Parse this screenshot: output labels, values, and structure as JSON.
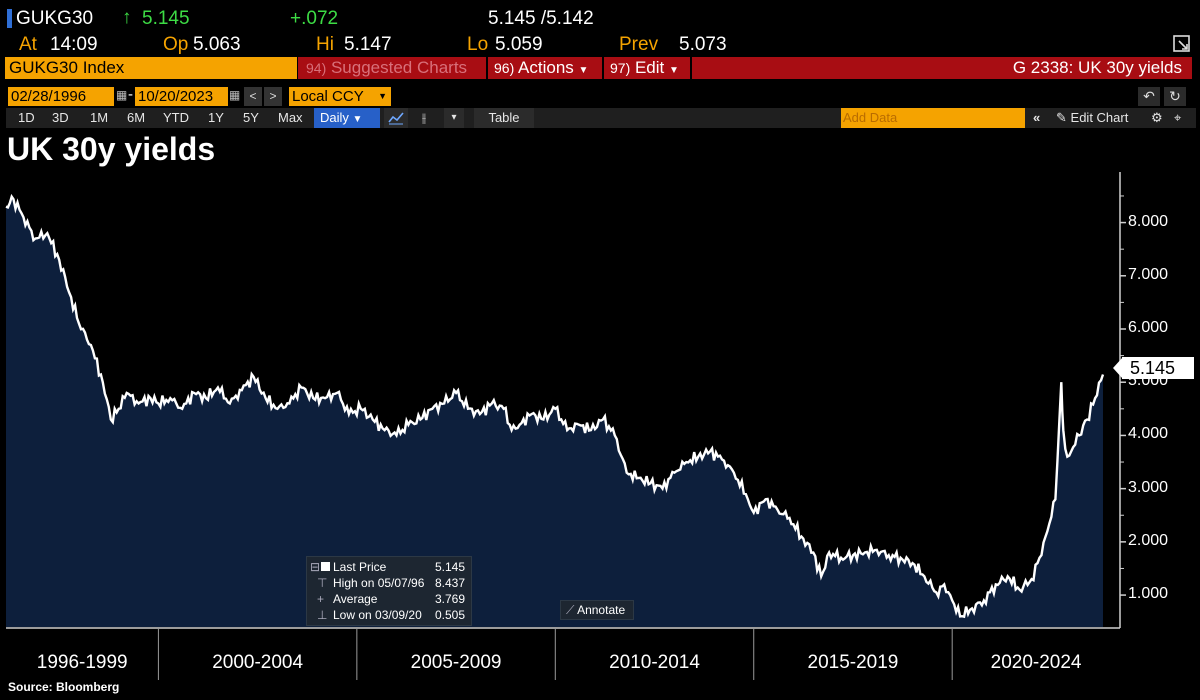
{
  "header": {
    "ticker": "GUKG30",
    "last": "5.145",
    "change": "+.072",
    "bid_ask": "5.145 /5.142",
    "at_label": "At",
    "at_value": "14:09",
    "op_label": "Op",
    "op_value": "5.063",
    "hi_label": "Hi",
    "hi_value": "5.147",
    "lo_label": "Lo",
    "lo_value": "5.059",
    "prev_label": "Prev",
    "prev_value": "5.073"
  },
  "command_bar": {
    "security": "GUKG30 Index",
    "suggested_num": "94)",
    "suggested": "Suggested Charts",
    "actions_num": "96)",
    "actions": "Actions",
    "edit_num": "97)",
    "edit": "Edit",
    "chart_id": "G 2338: UK 30y yields"
  },
  "controls": {
    "start_date": "02/28/1996",
    "end_date": "10/20/2023",
    "currency": "Local CCY",
    "periods": [
      "1D",
      "3D",
      "1M",
      "6M",
      "YTD",
      "1Y",
      "5Y",
      "Max"
    ],
    "frequency": "Daily",
    "table": "Table",
    "add_data_placeholder": "Add Data",
    "edit_chart": "Edit Chart"
  },
  "legend": {
    "last_price_label": "Last Price",
    "last_price_value": "5.145",
    "high_label": "High on 05/07/96",
    "high_value": "8.437",
    "average_label": "Average",
    "average_value": "3.769",
    "low_label": "Low on 03/09/20",
    "low_value": "0.505"
  },
  "annotate": "Annotate",
  "last_label": "5.145",
  "source": "Source: Bloomberg",
  "colors": {
    "line": "#ffffff",
    "fill": "#0d1f3c",
    "amber": "#f5a300",
    "red_bar": "#a80d13",
    "green": "#3ddc45"
  },
  "chart_data": {
    "type": "area",
    "title": "UK 30y yields",
    "xlabel": "",
    "ylabel": "",
    "ylim": [
      0.4,
      8.8
    ],
    "yticks": [
      "1.000",
      "2.000",
      "3.000",
      "4.000",
      "5.000",
      "6.000",
      "7.000",
      "8.000"
    ],
    "x_groups": [
      "1996-1999",
      "2000-2004",
      "2005-2009",
      "2010-2014",
      "2015-2019",
      "2020-2024"
    ],
    "x_range": [
      1996.16,
      2023.8
    ],
    "series": [
      {
        "name": "Last Price",
        "x": [
          1996.16,
          1996.35,
          1996.6,
          1996.9,
          1997.2,
          1997.5,
          1997.8,
          1998.0,
          1998.3,
          1998.6,
          1998.8,
          1999.0,
          1999.2,
          1999.5,
          1999.8,
          2000.0,
          2000.3,
          2000.6,
          2000.9,
          2001.2,
          2001.5,
          2001.8,
          2002.1,
          2002.4,
          2002.7,
          2003.0,
          2003.3,
          2003.6,
          2003.9,
          2004.2,
          2004.5,
          2004.8,
          2005.1,
          2005.4,
          2005.7,
          2006.0,
          2006.3,
          2006.6,
          2006.9,
          2007.2,
          2007.5,
          2007.8,
          2008.1,
          2008.4,
          2008.7,
          2008.9,
          2009.1,
          2009.4,
          2009.7,
          2010.0,
          2010.3,
          2010.6,
          2010.9,
          2011.2,
          2011.5,
          2011.8,
          2012.1,
          2012.4,
          2012.7,
          2013.0,
          2013.3,
          2013.6,
          2013.9,
          2014.2,
          2014.5,
          2014.8,
          2015.0,
          2015.3,
          2015.6,
          2015.9,
          2016.2,
          2016.5,
          2016.7,
          2016.9,
          2017.2,
          2017.5,
          2017.8,
          2018.1,
          2018.4,
          2018.7,
          2019.0,
          2019.3,
          2019.6,
          2019.8,
          2020.0,
          2020.2,
          2020.5,
          2020.8,
          2021.1,
          2021.4,
          2021.7,
          2022.0,
          2022.2,
          2022.4,
          2022.6,
          2022.75,
          2022.8,
          2022.9,
          2023.0,
          2023.2,
          2023.4,
          2023.6,
          2023.8
        ],
        "values": [
          8.3,
          8.44,
          8.1,
          7.7,
          7.8,
          7.3,
          6.6,
          6.1,
          5.7,
          5.0,
          4.3,
          4.5,
          4.8,
          4.6,
          4.7,
          4.6,
          4.7,
          4.5,
          4.8,
          4.7,
          4.9,
          4.6,
          4.85,
          5.1,
          4.7,
          4.5,
          4.6,
          4.9,
          4.7,
          4.7,
          4.8,
          4.4,
          4.5,
          4.3,
          4.1,
          4.0,
          4.2,
          4.3,
          4.5,
          4.6,
          4.8,
          4.5,
          4.4,
          4.6,
          4.5,
          4.1,
          4.2,
          4.4,
          4.3,
          4.5,
          4.1,
          4.2,
          4.1,
          4.3,
          4.0,
          3.3,
          3.2,
          3.1,
          3.0,
          3.3,
          3.5,
          3.6,
          3.7,
          3.55,
          3.3,
          2.9,
          2.55,
          2.8,
          2.6,
          2.45,
          2.1,
          1.8,
          1.35,
          1.8,
          1.7,
          1.75,
          1.8,
          1.85,
          1.75,
          1.7,
          1.6,
          1.35,
          1.05,
          1.2,
          0.9,
          0.6,
          0.75,
          0.9,
          1.2,
          1.35,
          1.1,
          1.3,
          1.7,
          2.2,
          2.8,
          5.0,
          4.1,
          3.6,
          3.7,
          4.0,
          4.3,
          4.7,
          5.145
        ]
      }
    ]
  }
}
